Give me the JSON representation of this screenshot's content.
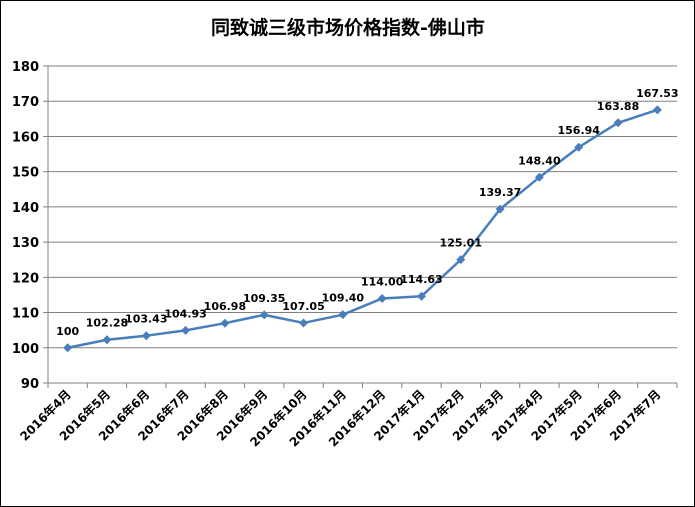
{
  "chart_data": {
    "type": "line",
    "title": "同致诚三级市场价格指数-佛山市",
    "categories": [
      "2016年4月",
      "2016年5月",
      "2016年6月",
      "2016年7月",
      "2016年8月",
      "2016年9月",
      "2016年10月",
      "2016年11月",
      "2016年12月",
      "2017年1月",
      "2017年2月",
      "2017年3月",
      "2017年4月",
      "2017年5月",
      "2017年6月",
      "2017年7月"
    ],
    "series": [
      {
        "values": [
          100,
          102.28,
          103.43,
          104.93,
          106.98,
          109.35,
          107.05,
          109.4,
          114.0,
          114.63,
          125.01,
          139.37,
          148.4,
          156.94,
          163.88,
          167.53
        ],
        "labels": [
          "100",
          "102.28",
          "103.43",
          "104.93",
          "106.98",
          "109.35",
          "107.05",
          "109.40",
          "114.00",
          "114.63",
          "125.01",
          "139.37",
          "148.40",
          "156.94",
          "163.88",
          "167.53"
        ]
      }
    ],
    "ylim": [
      90,
      180
    ],
    "yticks": [
      "90",
      "100",
      "110",
      "120",
      "130",
      "140",
      "150",
      "160",
      "170",
      "180"
    ],
    "xlabel": "",
    "ylabel": "",
    "grid": true,
    "colors": {
      "line": "#4a7ebb",
      "marker": "#4a7ebb",
      "grid": "#808080",
      "axis": "#808080"
    }
  }
}
